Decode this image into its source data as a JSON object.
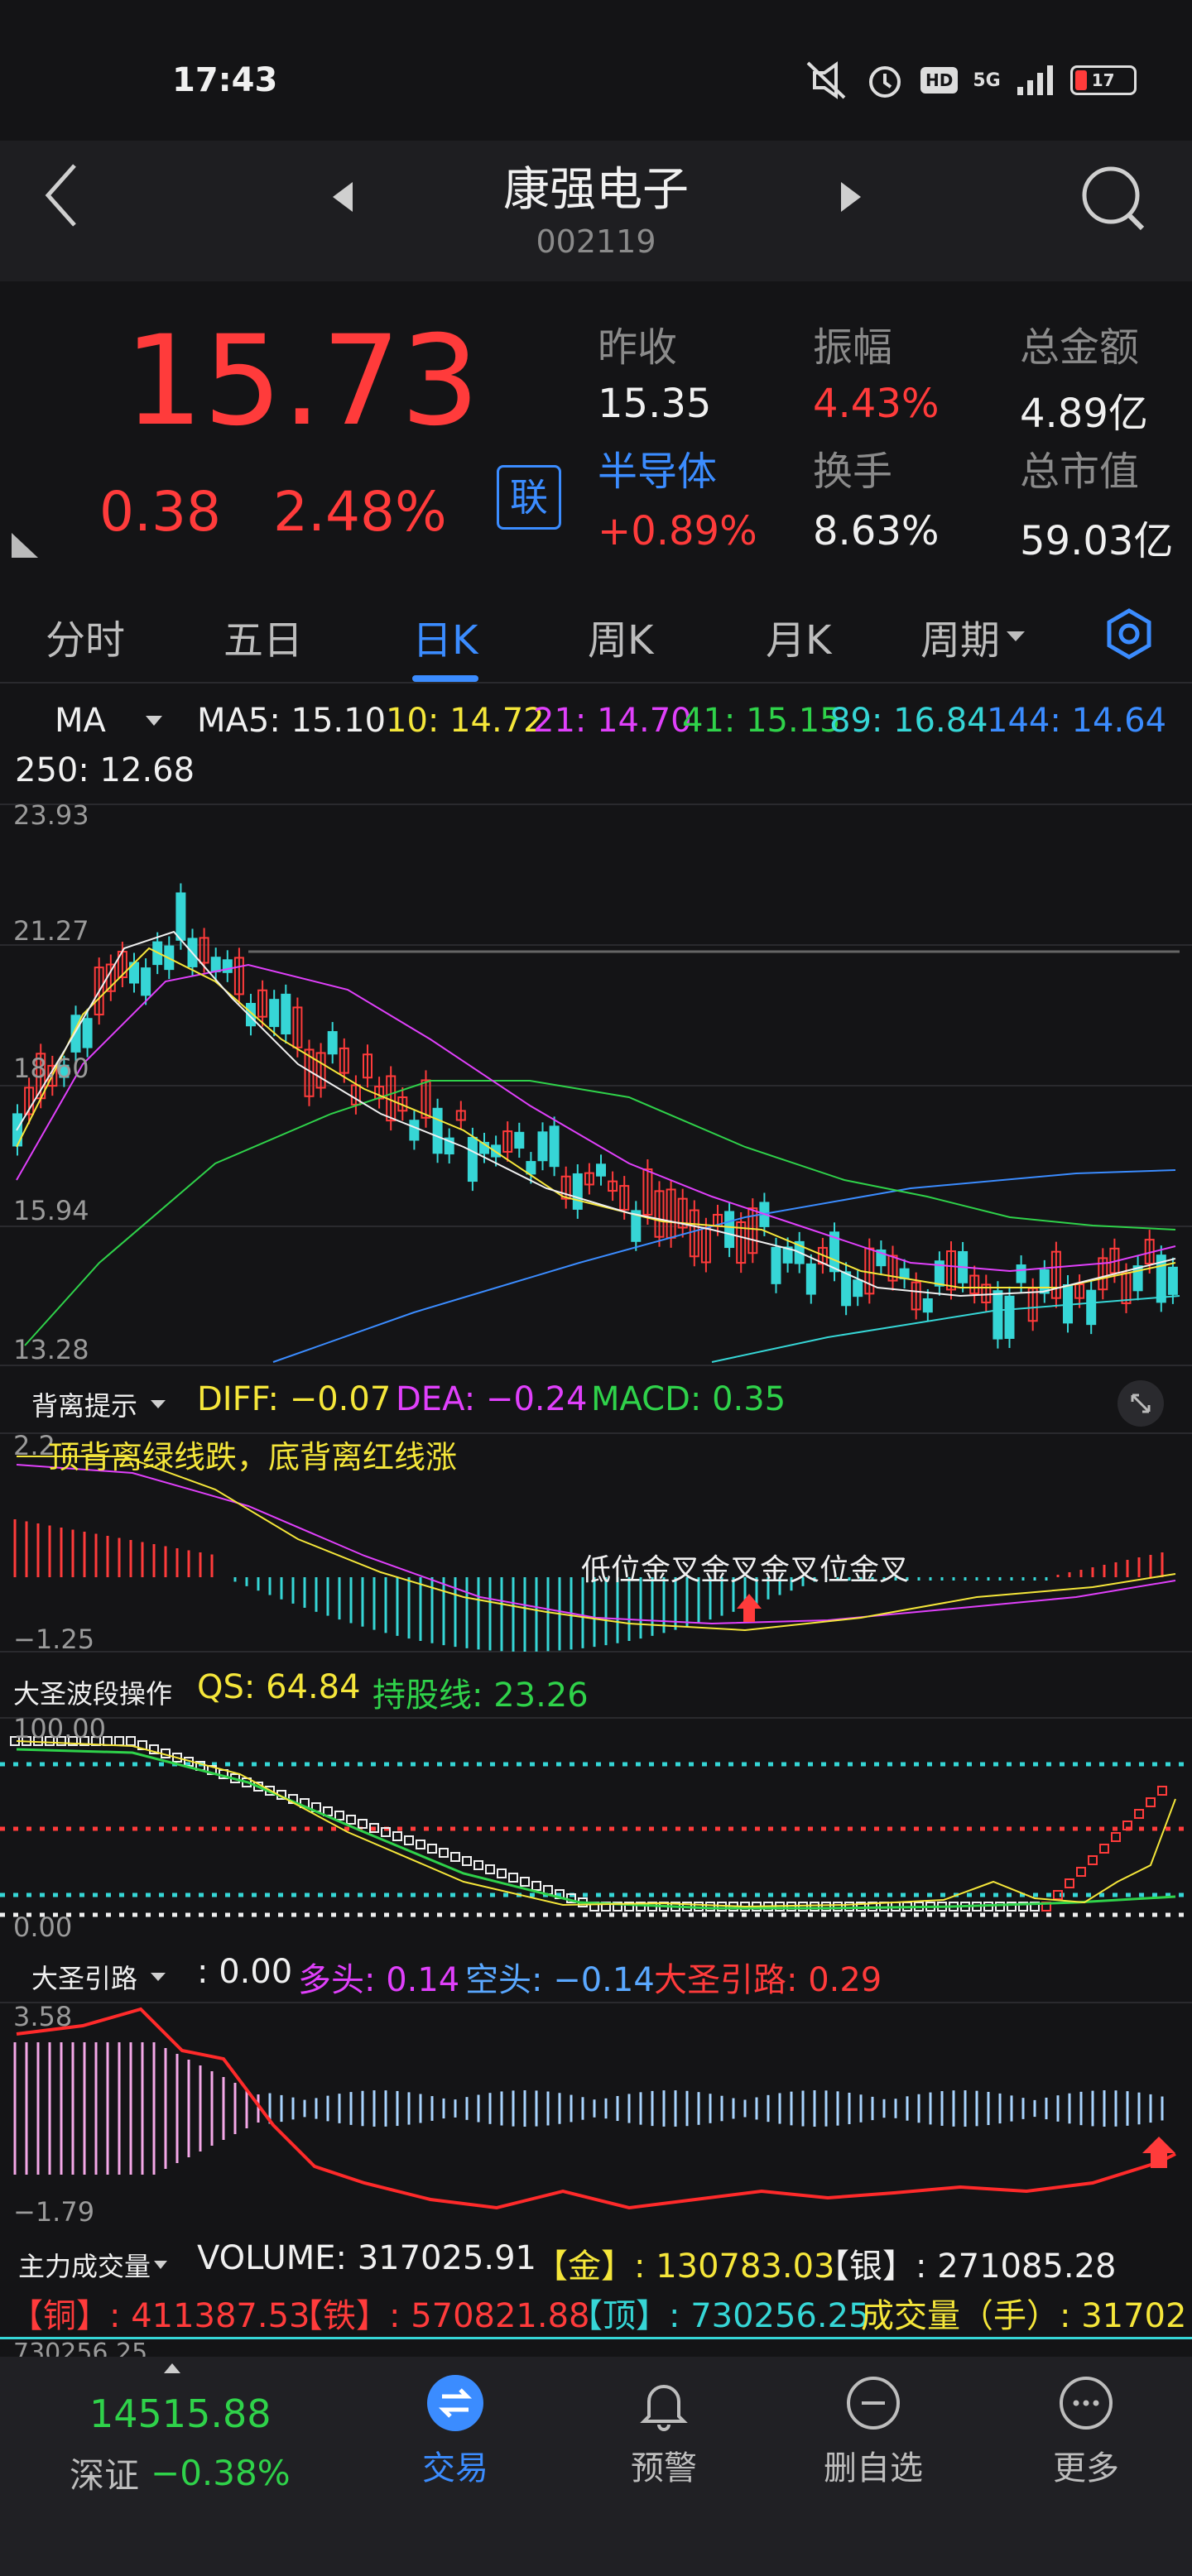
{
  "status_bar": {
    "time": "17:43",
    "network": "5G",
    "battery": "17"
  },
  "header": {
    "title": "康强电子",
    "code": "002119"
  },
  "quote": {
    "price": "15.73",
    "change": "0.38",
    "change_pct": "2.48%",
    "link_badge": "联",
    "stats": [
      {
        "label": "昨收",
        "value": "15.35",
        "value_color": "#f0f0f0"
      },
      {
        "label": "振幅",
        "value": "4.43%",
        "value_color": "#ff3b3b"
      },
      {
        "label": "总金额",
        "value": "4.89亿",
        "value_color": "#f0f0f0"
      },
      {
        "label": "半导体",
        "value": "+0.89%",
        "value_color": "#ff3b3b"
      },
      {
        "label": "换手",
        "value": "8.63%",
        "value_color": "#f0f0f0"
      },
      {
        "label": "总市值",
        "value": "59.03亿",
        "value_color": "#f0f0f0"
      }
    ]
  },
  "tabs": [
    "分时",
    "五日",
    "日K",
    "周K",
    "月K",
    "周期"
  ],
  "active_tab": 2,
  "ma_panel": {
    "selector": "MA",
    "items": [
      {
        "text": "MA5: 15.10",
        "color": "#f0f0f0"
      },
      {
        "text": "10: 14.72",
        "color": "#f5e63a"
      },
      {
        "text": "21: 14.70",
        "color": "#e040fb"
      },
      {
        "text": "41: 15.15",
        "color": "#2fd24a"
      },
      {
        "text": "89: 16.84",
        "color": "#36d6d6"
      },
      {
        "text": "144: 14.64",
        "color": "#3b8cff"
      }
    ],
    "line2": "250: 12.68",
    "y_labels": [
      "23.93",
      "21.27",
      "18.60",
      "15.94",
      "13.28"
    ]
  },
  "macd_panel": {
    "selector": "背离提示",
    "items": [
      {
        "text": "DIFF: −0.07",
        "color": "#f5e63a"
      },
      {
        "text": "DEA: −0.24",
        "color": "#e040fb"
      },
      {
        "text": "MACD: 0.35",
        "color": "#2fd24a"
      }
    ],
    "hint": "顶背离绿线跌，底背离红线涨",
    "y_top": "2.2",
    "y_bottom": "−1.25",
    "overlay_text": "低位金叉金叉金叉位金叉"
  },
  "wave_panel": {
    "selector": "大圣波段操作",
    "items": [
      {
        "text": "QS: 64.84",
        "color": "#f5e63a"
      },
      {
        "text": "持股线: 23.26",
        "color": "#2fd24a"
      }
    ],
    "y_top": "100.00",
    "y_bottom": "0.00"
  },
  "road_panel": {
    "selector": "大圣引路",
    "items": [
      {
        "text": ": 0.00",
        "color": "#f0f0f0"
      },
      {
        "text": "多头: 0.14",
        "color": "#e040fb"
      },
      {
        "text": "空头: −0.14",
        "color": "#5aa8ff"
      },
      {
        "text": "大圣引路: 0.29",
        "color": "#ff3b3b"
      }
    ],
    "y_top": "3.58",
    "y_bottom": "−1.79"
  },
  "volume_panel": {
    "selector": "主力成交量",
    "line1": [
      {
        "text": "VOLUME: 317025.91",
        "color": "#f0f0f0"
      },
      {
        "text": "【金】: 130783.03",
        "color": "#f5e63a"
      },
      {
        "text": "【银】: 271085.28",
        "color": "#f0f0f0"
      }
    ],
    "line2": [
      {
        "text": "【铜】: 411387.53",
        "color": "#ff3b3b"
      },
      {
        "text": "【铁】: 570821.88",
        "color": "#ff3b3b"
      },
      {
        "text": "【顶】: 730256.25",
        "color": "#36d6d6"
      },
      {
        "text": "成交量（手）: 31702",
        "color": "#f5e63a"
      }
    ],
    "y_top": "730256.25"
  },
  "bottom_nav": {
    "index_value": "14515.88",
    "index_name": "深证",
    "index_change": "−0.38%",
    "items": [
      {
        "label": "交易",
        "icon": "trade-icon",
        "active": true
      },
      {
        "label": "预警",
        "icon": "bell-icon",
        "active": false
      },
      {
        "label": "删自选",
        "icon": "minus-circle-icon",
        "active": false
      },
      {
        "label": "更多",
        "icon": "more-icon",
        "active": false
      }
    ]
  }
}
